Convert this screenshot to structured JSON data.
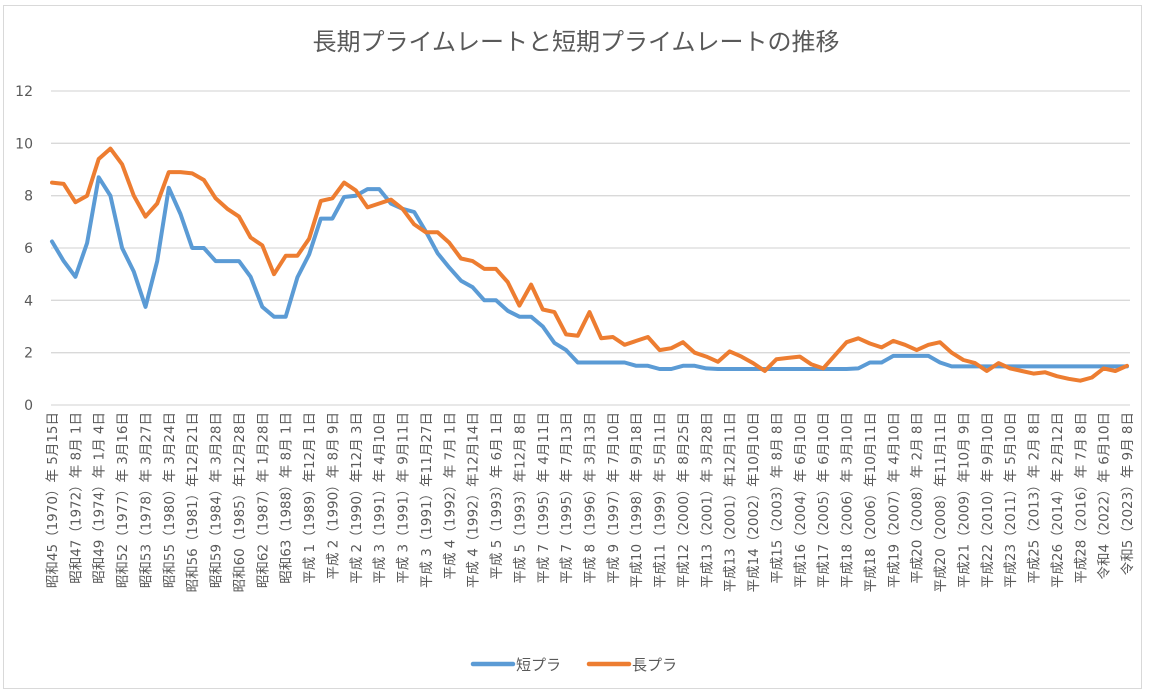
{
  "chart_data": {
    "type": "line",
    "title": "長期プライムレートと短期プライムレートの推移",
    "xlabel": "",
    "ylabel": "",
    "ylim": [
      0,
      12
    ],
    "yticks": [
      0,
      2,
      4,
      6,
      8,
      10,
      12
    ],
    "grid": "horizontal",
    "legend_position": "bottom",
    "tick_labels": [
      "昭和45（1970）年 5月15日",
      "昭和47（1972）年 8月 1日",
      "昭和49（1974）年 1月 4日",
      "昭和52（1977）年 3月16日",
      "昭和53（1978）年 3月27日",
      "昭和55（1980）年 3月24日",
      "昭和56（1981）年12月21日",
      "昭和59（1984）年 3月28日",
      "昭和60（1985）年12月28日",
      "昭和62（1987）年 1月28日",
      "昭和63（1988）年 8月 1日",
      "平成 1（1989）年12月 1日",
      "平成 2（1990）年 8月 9日",
      "平成 2（1990）年12月 3日",
      "平成 3（1991）年 4月10日",
      "平成 3（1991）年 9月11日",
      "平成 3（1991）年11月27日",
      "平成 4（1992）年 7月 1日",
      "平成 4（1992）年12月14日",
      "平成 5（1993）年 6月 1日",
      "平成 5（1993）年12月 8日",
      "平成 7（1995）年 4月11日",
      "平成 7（1995）年 7月13日",
      "平成 8（1996）年 3月13日",
      "平成 9（1997）年 7月10日",
      "平成10（1998）年 9月18日",
      "平成11（1999）年 5月11日",
      "平成12（2000）年 8月25日",
      "平成13（2001）年 3月28日",
      "平成13（2001）年12月11日",
      "平成14（2002）年10月10日",
      "平成15（2003）年 8月 8日",
      "平成16（2004）年 6月10日",
      "平成17（2005）年 6月10日",
      "平成18（2006）年 3月10日",
      "平成18（2006）年10月11日",
      "平成19（2007）年 4月10日",
      "平成20（2008）年 2月 8日",
      "平成20（2008）年11月11日",
      "平成21（2009）年10月 9日",
      "平成22（2010）年 9月10日",
      "平成23（2011）年 5月10日",
      "平成25（2013）年 2月 8日",
      "平成26（2014）年 2月12日",
      "平成28（2016）年 7月 8日",
      "令和4（2022）年 6月10日",
      "令和5（2023）年 9月 8日"
    ],
    "series": [
      {
        "name": "短プラ",
        "color": "#5b9bd5",
        "values": [
          6.25,
          5.5,
          4.9,
          6.19,
          8.7,
          8.0,
          6.0,
          5.1,
          3.75,
          5.5,
          8.3,
          7.3,
          6.0,
          6.0,
          5.5,
          5.5,
          5.5,
          4.9,
          3.75,
          3.375,
          3.375,
          4.875,
          5.75,
          7.125,
          7.125,
          7.95,
          8.0,
          8.25,
          8.25,
          7.7,
          7.5,
          7.375,
          6.625,
          5.8,
          5.25,
          4.75,
          4.5,
          4.0,
          4.0,
          3.6,
          3.375,
          3.375,
          3.0,
          2.375,
          2.1,
          1.625,
          1.625,
          1.625,
          1.625,
          1.625,
          1.5,
          1.5,
          1.375,
          1.375,
          1.5,
          1.5,
          1.4,
          1.375,
          1.375,
          1.375,
          1.375,
          1.375,
          1.375,
          1.375,
          1.375,
          1.375,
          1.375,
          1.375,
          1.375,
          1.4,
          1.625,
          1.625,
          1.875,
          1.875,
          1.875,
          1.875,
          1.625,
          1.475,
          1.475,
          1.475,
          1.475,
          1.475,
          1.475,
          1.475,
          1.475,
          1.475,
          1.475,
          1.475,
          1.475,
          1.475,
          1.475,
          1.475,
          1.475
        ]
      },
      {
        "name": "長プラ",
        "color": "#ed7d31",
        "values": [
          8.5,
          8.45,
          7.75,
          8.0,
          9.4,
          9.8,
          9.2,
          8.0,
          7.2,
          7.7,
          8.9,
          8.9,
          8.85,
          8.6,
          7.9,
          7.5,
          7.2,
          6.4,
          6.1,
          5.0,
          5.7,
          5.7,
          6.35,
          7.8,
          7.9,
          8.5,
          8.2,
          7.55,
          7.7,
          7.85,
          7.5,
          6.9,
          6.6,
          6.6,
          6.2,
          5.6,
          5.5,
          5.2,
          5.2,
          4.7,
          3.8,
          4.6,
          3.65,
          3.55,
          2.7,
          2.65,
          3.55,
          2.55,
          2.6,
          2.3,
          2.45,
          2.6,
          2.1,
          2.17,
          2.4,
          2.0,
          1.85,
          1.65,
          2.05,
          1.85,
          1.6,
          1.3,
          1.75,
          1.8,
          1.85,
          1.55,
          1.4,
          1.9,
          2.4,
          2.55,
          2.35,
          2.2,
          2.45,
          2.3,
          2.1,
          2.3,
          2.4,
          2.0,
          1.72,
          1.6,
          1.3,
          1.6,
          1.4,
          1.3,
          1.2,
          1.25,
          1.1,
          1.0,
          0.93,
          1.05,
          1.4,
          1.3,
          1.5
        ]
      }
    ]
  }
}
